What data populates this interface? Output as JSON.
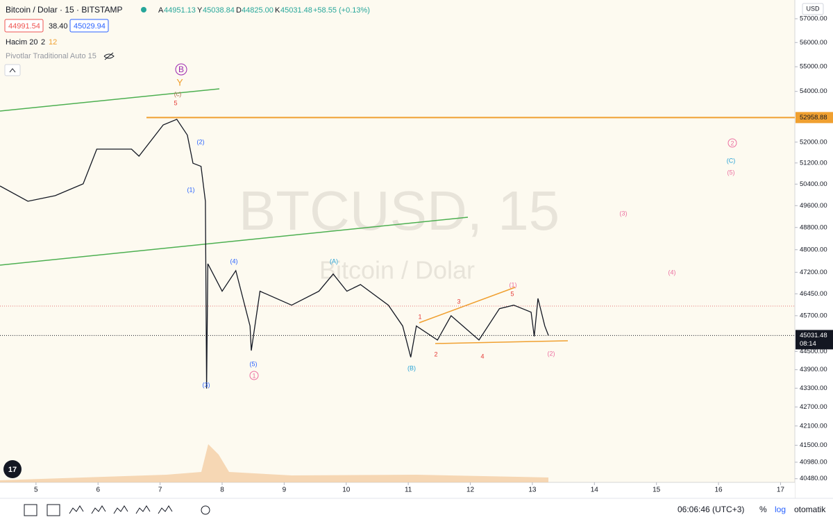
{
  "header": {
    "symbol": "Bitcoin / Dolar · 15 · BITSTAMP",
    "ohlc": [
      {
        "key": "A",
        "value": "44951.13"
      },
      {
        "key": "Y",
        "value": "45038.84"
      },
      {
        "key": "D",
        "value": "44825.00"
      },
      {
        "key": "K",
        "value": "45031.48"
      }
    ],
    "change": "+58.55 (+0.13%)",
    "bid": "44991.54",
    "spread": "38.40",
    "ask": "45029.94",
    "volume_indicator": "Hacim 20",
    "volume_value_1": "2",
    "volume_value_2": "12",
    "pivots_indicator": "Pivotlar Traditional Auto 15"
  },
  "watermark": {
    "main": "BTCUSD, 15",
    "sub": "Bitcoin / Dolar"
  },
  "currency": "USD",
  "chart_data": {
    "type": "line",
    "log_scale": true,
    "color": "#131722",
    "x": [
      4.42,
      4.87,
      5.31,
      5.76,
      5.98,
      6.54,
      6.66,
      7.05,
      7.27,
      7.44,
      7.53,
      7.66,
      7.73,
      7.75,
      7.77,
      8.0,
      8.22,
      8.45,
      8.47,
      8.61,
      9.12,
      9.56,
      9.79,
      10.01,
      10.23,
      10.68,
      10.91,
      11.04,
      11.13,
      11.47,
      11.69,
      12.14,
      12.47,
      12.7,
      12.98,
      13.03,
      13.09,
      13.2,
      13.26
    ],
    "values": [
      50330,
      49760,
      49970,
      50410,
      51730,
      51730,
      51460,
      52670,
      52890,
      52270,
      51190,
      51070,
      49760,
      43290,
      47500,
      46540,
      47260,
      45350,
      44530,
      46540,
      46060,
      46540,
      47140,
      46540,
      46770,
      46060,
      45350,
      44310,
      45350,
      44880,
      45700,
      44880,
      45940,
      46060,
      45820,
      45000,
      46290,
      45350,
      45031.48
    ],
    "xlim": [
      4.42,
      17.23
    ],
    "xticks": [
      5,
      6,
      7,
      8,
      9,
      10,
      11,
      12,
      13,
      14,
      15,
      16,
      17
    ],
    "ylim": [
      40370,
      57800
    ],
    "yticks": [
      {
        "value": 57000,
        "label": "57000.00"
      },
      {
        "value": 56000,
        "label": "56000.00"
      },
      {
        "value": 55000,
        "label": "55000.00"
      },
      {
        "value": 54000,
        "label": "54000.00"
      },
      {
        "value": 52000,
        "label": "52000.00"
      },
      {
        "value": 51200,
        "label": "51200.00"
      },
      {
        "value": 50400,
        "label": "50400.00"
      },
      {
        "value": 49600,
        "label": "49600.00"
      },
      {
        "value": 48800,
        "label": "48800.00"
      },
      {
        "value": 48000,
        "label": "48000.00"
      },
      {
        "value": 47200,
        "label": "47200.00"
      },
      {
        "value": 46450,
        "label": "46450.00"
      },
      {
        "value": 45700,
        "label": "45700.00"
      },
      {
        "value": 44500,
        "label": "44500.00"
      },
      {
        "value": 43900,
        "label": "43900.00"
      },
      {
        "value": 43300,
        "label": "43300.00"
      },
      {
        "value": 42700,
        "label": "42700.00"
      },
      {
        "value": 42100,
        "label": "42100.00"
      },
      {
        "value": 41500,
        "label": "41500.00"
      },
      {
        "value": 40980,
        "label": "40980.00"
      },
      {
        "value": 40480,
        "label": "40480.00"
      }
    ],
    "level_line": 52958.88,
    "level_color": "#f0a030",
    "last_price": 45031.48,
    "countdown": "08:14"
  },
  "annotations": [
    "B",
    "Y",
    "(c)",
    "5",
    "(2)",
    "(1)",
    "(4)",
    "(5)",
    "1",
    "(3)",
    "(A)",
    "(B)",
    "1",
    "2",
    "3",
    "4",
    "5",
    "(1)",
    "(2)",
    "(3)",
    "(4)",
    "(5)",
    "(C)",
    "2"
  ],
  "bottom_bar": {
    "clock": "06:06:46 (UTC+3)",
    "percent": "%",
    "log": "log",
    "auto": "otomatik"
  }
}
